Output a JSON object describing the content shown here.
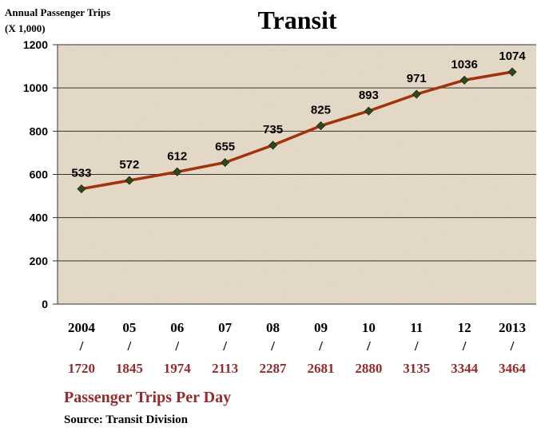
{
  "chart_data": {
    "type": "line",
    "title": "Transit",
    "y_axis_label": [
      "Annual Passenger Trips",
      "(X 1,000)"
    ],
    "categories": [
      "2004",
      "05",
      "06",
      "07",
      "08",
      "09",
      "10",
      "11",
      "12",
      "2013"
    ],
    "category_separator": "/",
    "secondary_labels": [
      1720,
      1845,
      1974,
      2113,
      2287,
      2681,
      2880,
      3135,
      3344,
      3464
    ],
    "secondary_title": "Passenger Trips Per Day",
    "source": "Source: Transit Division",
    "series": [
      {
        "name": "Annual Passenger Trips",
        "color": "#a2310c",
        "marker_color": "#2e4a1c",
        "values": [
          533,
          572,
          612,
          655,
          735,
          825,
          893,
          971,
          1036,
          1074
        ]
      }
    ],
    "ylim": [
      0,
      1200
    ],
    "yticks": [
      0,
      200,
      400,
      600,
      800,
      1000,
      1200
    ],
    "grid": true
  }
}
